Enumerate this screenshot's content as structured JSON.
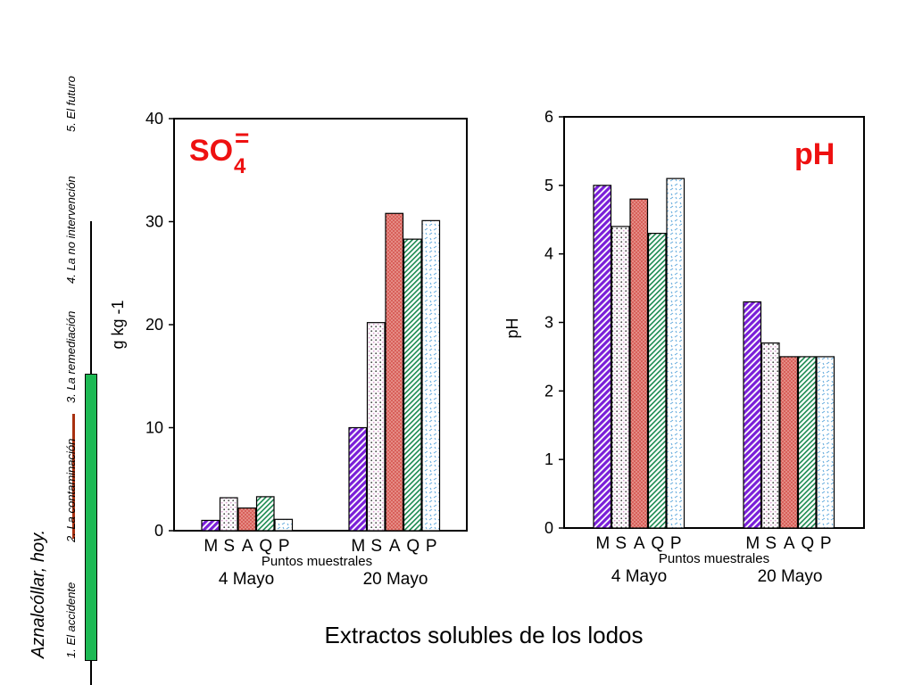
{
  "side_title": "Aznalcóllar, hoy.",
  "nav": {
    "items": [
      {
        "label": "1. El accidente"
      },
      {
        "label": "2. La contaminación"
      },
      {
        "label": "3. La remediación"
      },
      {
        "label": "4. La no intervención"
      },
      {
        "label": "5. El futuro"
      }
    ]
  },
  "footer_title": "Extractos solubles de los lodos",
  "colors": {
    "M": "#7a1fd8",
    "S": "#f2d7ee",
    "A": "#d8605a",
    "Q": "#1a8a50",
    "P": "#5fa8dc",
    "title_red": "#ee1111",
    "nav_green": "#1db954",
    "nav_red": "#a83010"
  },
  "chart_data": [
    {
      "type": "bar",
      "title_main": "SO",
      "title_sub": "4",
      "title_sup": "=",
      "ylabel": "g kg -1",
      "xlabel": "Puntos muestrales",
      "ylim": [
        0,
        40
      ],
      "yticks": [
        0,
        10,
        20,
        30,
        40
      ],
      "groups": [
        "4 Mayo",
        "20 Mayo"
      ],
      "series": [
        {
          "name": "M",
          "values": [
            1.0,
            10.0
          ]
        },
        {
          "name": "S",
          "values": [
            3.2,
            20.2
          ]
        },
        {
          "name": "A",
          "values": [
            2.2,
            30.8
          ]
        },
        {
          "name": "Q",
          "values": [
            3.3,
            28.3
          ]
        },
        {
          "name": "P",
          "values": [
            1.1,
            30.1
          ]
        }
      ]
    },
    {
      "type": "bar",
      "title_main": "pH",
      "ylabel": "pH",
      "xlabel": "Puntos muestrales",
      "ylim": [
        0,
        6
      ],
      "yticks": [
        0,
        1,
        2,
        3,
        4,
        5,
        6
      ],
      "groups": [
        "4 Mayo",
        "20 Mayo"
      ],
      "series": [
        {
          "name": "M",
          "values": [
            5.0,
            3.3
          ]
        },
        {
          "name": "S",
          "values": [
            4.4,
            2.7
          ]
        },
        {
          "name": "A",
          "values": [
            4.8,
            2.5
          ]
        },
        {
          "name": "Q",
          "values": [
            4.3,
            2.5
          ]
        },
        {
          "name": "P",
          "values": [
            5.1,
            2.5
          ]
        }
      ]
    }
  ]
}
